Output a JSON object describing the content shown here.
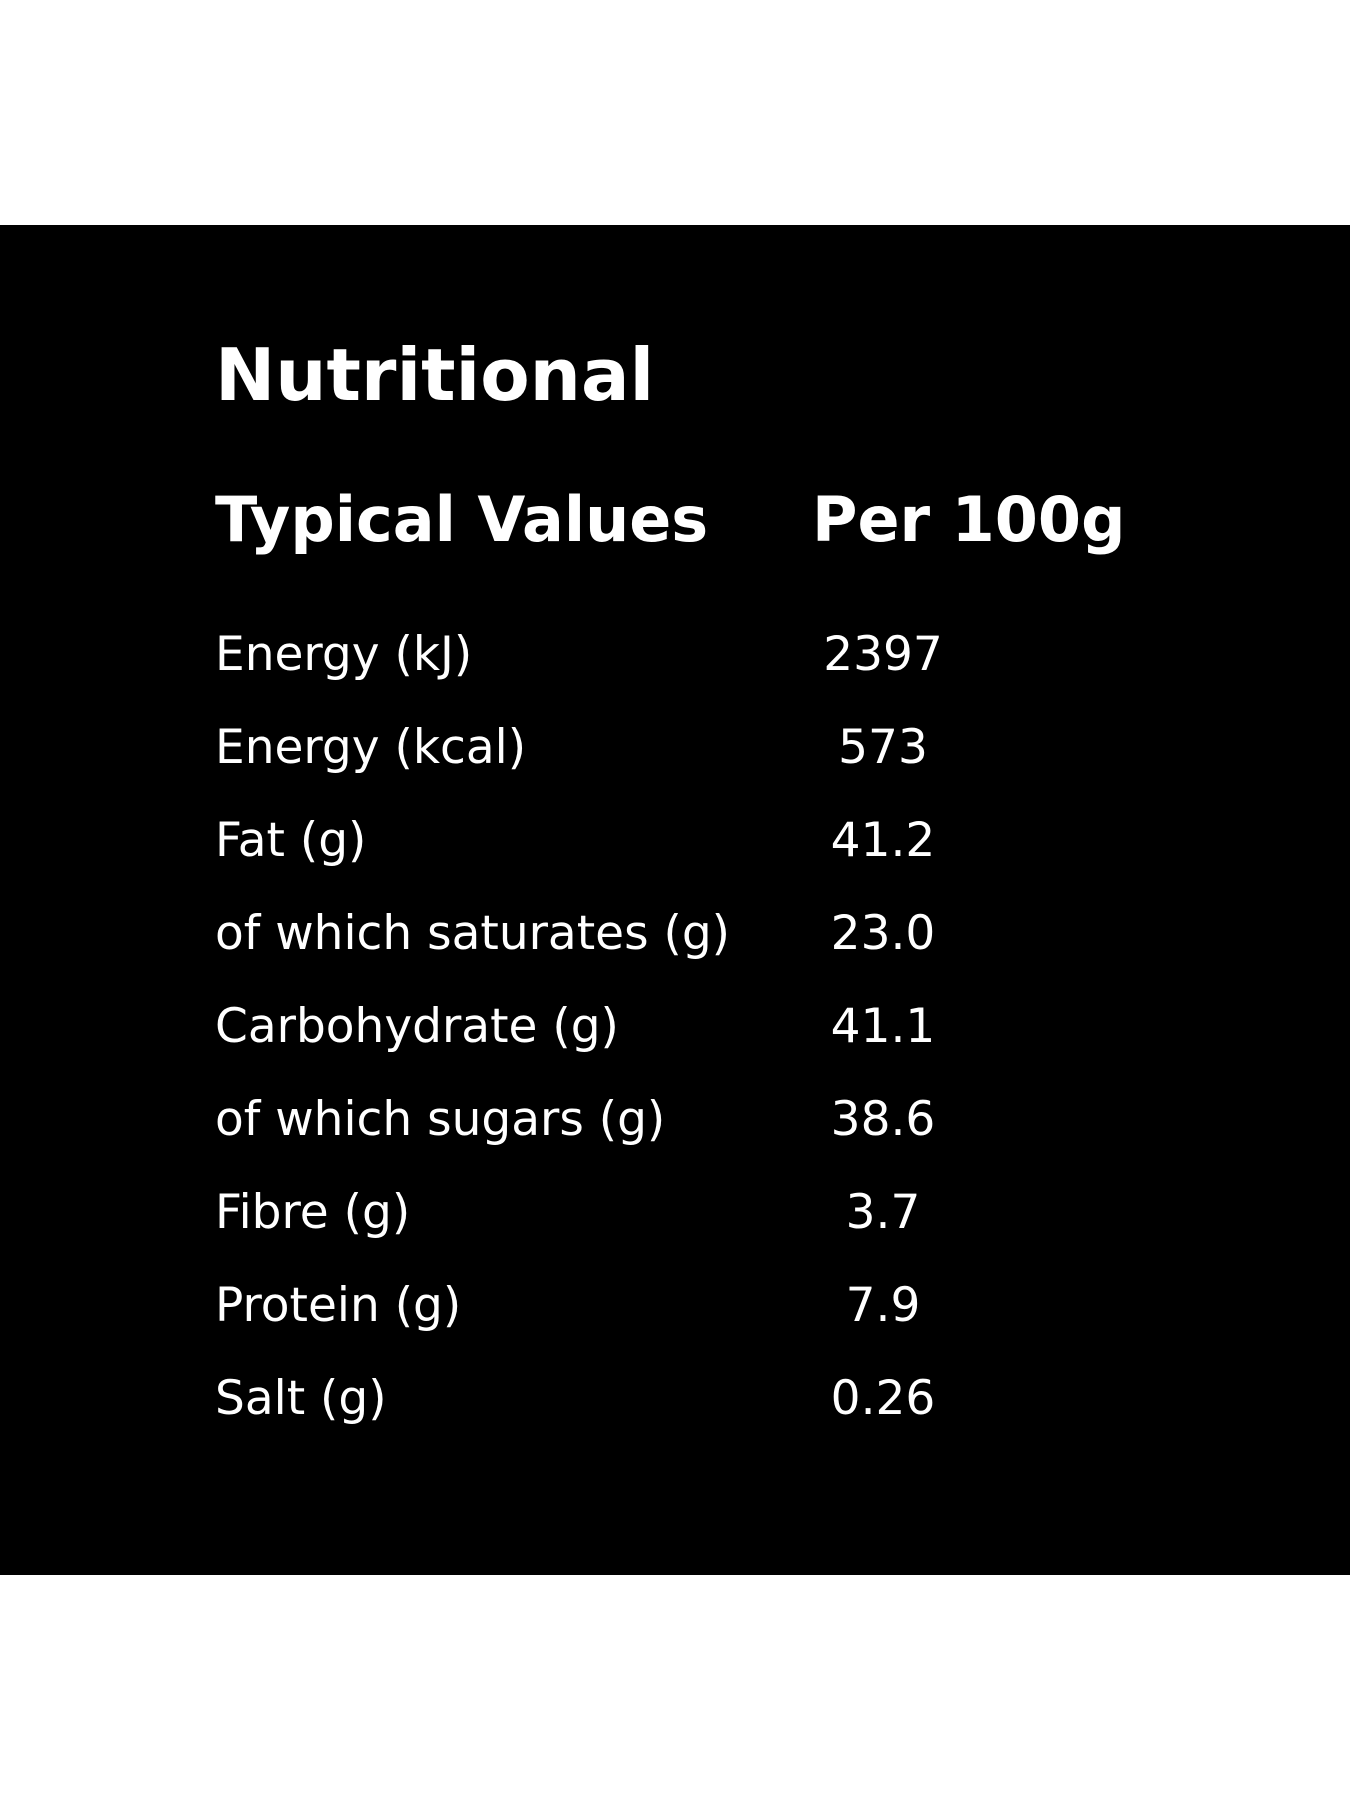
{
  "panel": {
    "title": "Nutritional",
    "header": {
      "label": "Typical Values",
      "value": "Per 100g"
    },
    "rows": [
      {
        "label": "Energy (kJ)",
        "value": "2397"
      },
      {
        "label": "Energy (kcal)",
        "value": "573"
      },
      {
        "label": "Fat (g)",
        "value": "41.2"
      },
      {
        "label": "of which saturates (g)",
        "value": "23.0"
      },
      {
        "label": "Carbohydrate (g)",
        "value": "41.1"
      },
      {
        "label": "of which sugars (g)",
        "value": "38.6"
      },
      {
        "label": "Fibre (g)",
        "value": "3.7"
      },
      {
        "label": "Protein (g)",
        "value": "7.9"
      },
      {
        "label": "Salt (g)",
        "value": "0.26"
      }
    ],
    "colors": {
      "background": "#000000",
      "text": "#ffffff",
      "page": "#ffffff"
    }
  }
}
